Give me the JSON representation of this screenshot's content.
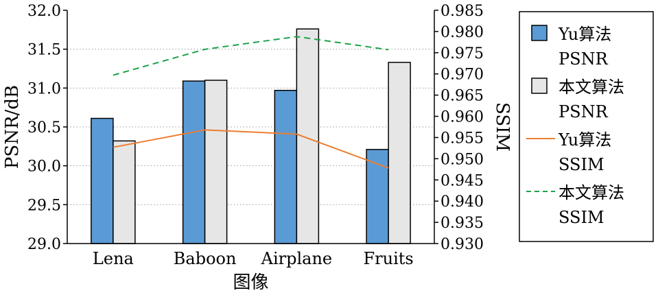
{
  "chart_data": {
    "type": "bar",
    "categories": [
      "Lena",
      "Baboon",
      "Airplane",
      "Fruits"
    ],
    "xlabel": "图像",
    "ylabel": "PSNR/dB",
    "ylabel_right": "SSIM",
    "ylim": [
      29.0,
      32.0
    ],
    "ylim_right": [
      0.93,
      0.985
    ],
    "yticks": [
      "29.0",
      "29.5",
      "30.0",
      "30.5",
      "31.0",
      "31.5",
      "32.0"
    ],
    "yticks_right": [
      "0.930",
      "0.935",
      "0.940",
      "0.945",
      "0.950",
      "0.955",
      "0.960",
      "0.965",
      "0.970",
      "0.975",
      "0.980",
      "0.985"
    ],
    "grid": "horizontal dotted",
    "legend_position": "right",
    "series": [
      {
        "name_lines": [
          "Yu算法",
          "PSNR"
        ],
        "kind": "bar",
        "axis": "left",
        "color": "#5b9bd5",
        "values": [
          30.61,
          31.09,
          30.97,
          30.21
        ]
      },
      {
        "name_lines": [
          "本文算法",
          "PSNR"
        ],
        "kind": "bar",
        "axis": "left",
        "color": "#e6e6e6",
        "values": [
          30.32,
          31.1,
          31.76,
          31.33
        ]
      },
      {
        "name_lines": [
          "Yu算法",
          "SSIM"
        ],
        "kind": "line",
        "axis": "right",
        "color": "#ed7d31",
        "dash": "solid",
        "values": [
          0.9527,
          0.9568,
          0.9558,
          0.9478
        ]
      },
      {
        "name_lines": [
          "本文算法",
          "SSIM"
        ],
        "kind": "line",
        "axis": "right",
        "color": "#1aa34a",
        "dash": "dashed",
        "values": [
          0.9697,
          0.9758,
          0.9788,
          0.9757
        ]
      }
    ]
  }
}
